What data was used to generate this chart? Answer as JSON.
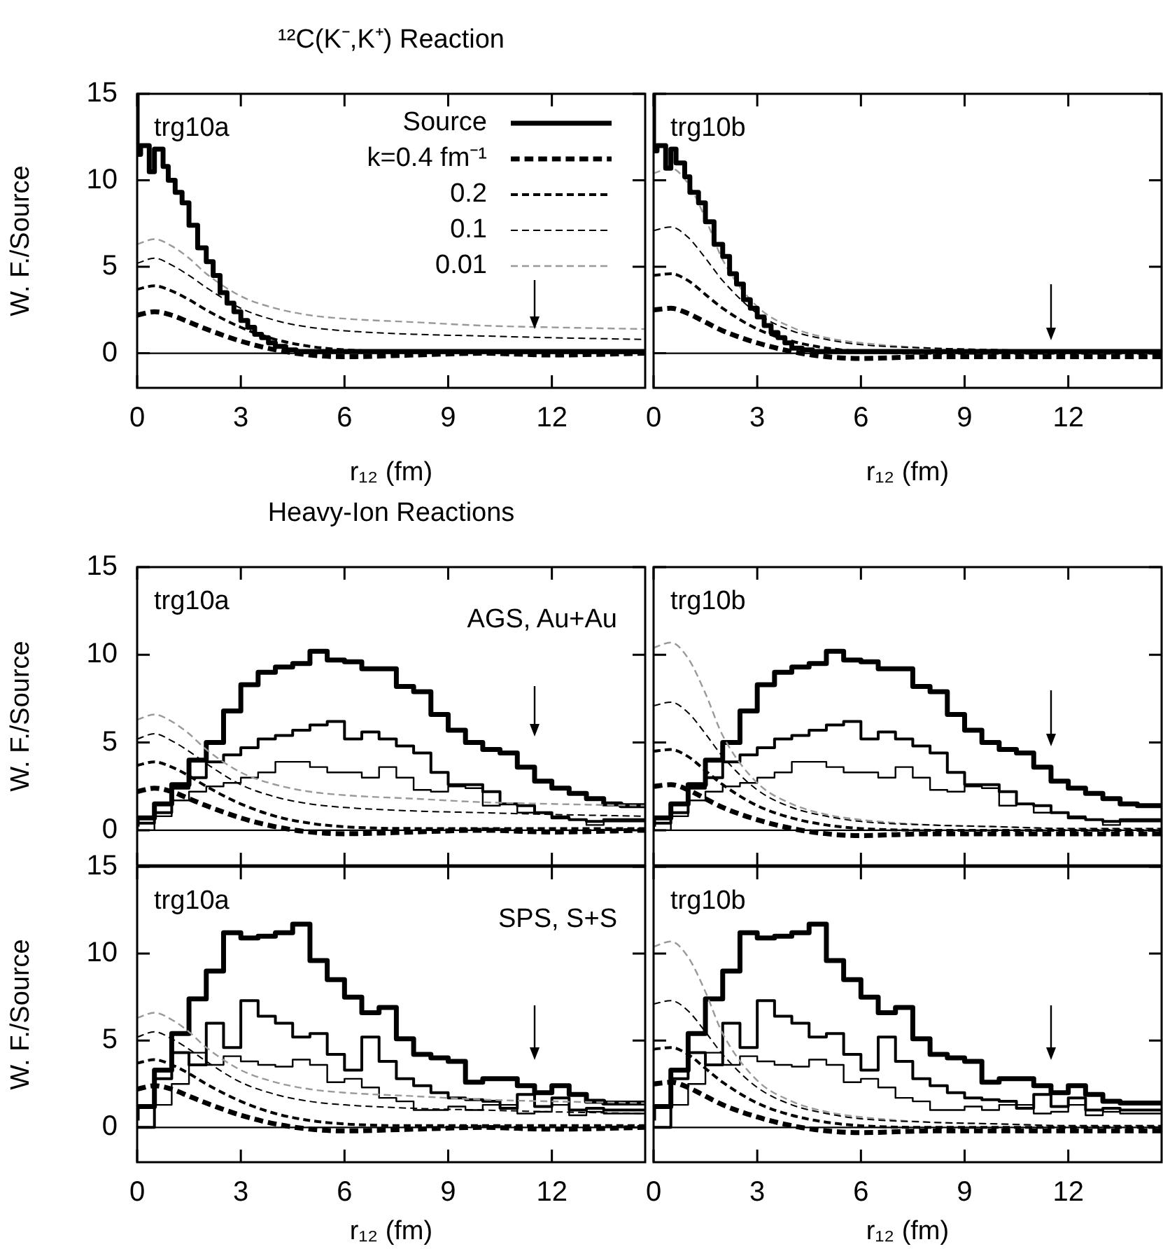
{
  "chart_data": [
    {
      "type": "line",
      "title": "¹²C(K⁻,K⁺) Reaction",
      "annotations": [
        "trg10a"
      ],
      "xlabel": "r₁₂ (fm)",
      "ylabel": "W. F./Source",
      "xlim": [
        0,
        14.7
      ],
      "ylim": [
        -2,
        15
      ],
      "xticks": [
        0,
        3,
        6,
        9,
        12
      ],
      "yticks": [
        0,
        5,
        10,
        15
      ],
      "legend": "top right",
      "ref_lines": [
        {
          "axis": "y",
          "value": 0
        }
      ],
      "series": [
        {
          "name": "Source",
          "type": "step",
          "color": "#000000",
          "x": [
            0,
            0.1,
            0.35,
            0.5,
            0.75,
            0.9,
            1.1,
            1.3,
            1.5,
            1.75,
            2.0,
            2.2,
            2.4,
            2.6,
            2.8,
            3.0,
            3.2,
            3.4,
            3.6,
            3.8,
            4.0,
            4.3,
            4.6,
            5.0,
            14.7
          ],
          "values": [
            15,
            11.5,
            12.0,
            10.5,
            11.8,
            10.8,
            10.0,
            9.3,
            8.7,
            7.4,
            6.1,
            5.3,
            4.5,
            3.5,
            2.9,
            2.4,
            1.9,
            1.5,
            1.1,
            0.9,
            0.6,
            0.4,
            0.2,
            0.1,
            0.1
          ]
        },
        {
          "name": "k=0.4 fm⁻¹",
          "type": "line",
          "line_style": "dashed",
          "color": "#000000",
          "x": [
            0,
            0.5,
            1,
            1.5,
            2,
            3,
            4,
            5,
            6,
            8,
            10,
            12,
            14.7
          ],
          "values": [
            2.2,
            2.4,
            2.2,
            1.8,
            1.4,
            0.7,
            0.2,
            -0.1,
            -0.2,
            -0.1,
            0,
            -0.1,
            0
          ]
        },
        {
          "name": "0.2",
          "type": "line",
          "line_style": "dashed",
          "color": "#000000",
          "x": [
            0,
            0.5,
            1,
            1.5,
            2,
            3,
            4,
            5,
            6,
            8,
            10,
            12,
            14.7
          ],
          "values": [
            3.7,
            3.9,
            3.6,
            3.1,
            2.5,
            1.5,
            0.8,
            0.4,
            0.2,
            0.1,
            0.1,
            0.1,
            0.1
          ]
        },
        {
          "name": "0.1",
          "type": "line",
          "line_style": "dashed",
          "color": "#000000",
          "x": [
            0,
            0.5,
            1,
            1.5,
            2,
            3,
            4,
            5,
            6,
            8,
            10,
            12,
            14.7
          ],
          "values": [
            5.2,
            5.5,
            5.1,
            4.5,
            3.8,
            2.6,
            1.9,
            1.5,
            1.3,
            1.1,
            1.0,
            0.9,
            0.8
          ]
        },
        {
          "name": "0.01",
          "type": "line",
          "line_style": "dashed",
          "color": "#999999",
          "x": [
            0,
            0.5,
            1,
            1.5,
            2,
            3,
            4,
            5,
            6,
            8,
            10,
            12,
            14.7
          ],
          "values": [
            6.3,
            6.6,
            6.2,
            5.5,
            4.6,
            3.3,
            2.6,
            2.2,
            2.0,
            1.8,
            1.6,
            1.5,
            1.4
          ]
        }
      ]
    },
    {
      "type": "line",
      "annotations": [
        "trg10b"
      ],
      "xlabel": "r₁₂ (fm)",
      "xlim": [
        0,
        14.7
      ],
      "ylim": [
        -2,
        15
      ],
      "xticks": [
        0,
        3,
        6,
        9,
        12
      ],
      "yticks": [
        0,
        5,
        10,
        15
      ],
      "tick_labels": "x",
      "ref_lines": [
        {
          "axis": "y",
          "value": 0
        }
      ],
      "series": [
        {
          "type": "step",
          "color": "#000000",
          "x": [
            0,
            0.1,
            0.35,
            0.5,
            0.65,
            0.9,
            1.05,
            1.3,
            1.5,
            1.75,
            2.0,
            2.2,
            2.4,
            2.6,
            2.8,
            3.0,
            3.2,
            3.4,
            3.6,
            3.8,
            4.0,
            4.3,
            4.6,
            5.0,
            14.7
          ],
          "values": [
            15,
            11.7,
            12.0,
            10.7,
            11.8,
            11.0,
            10.2,
            9.3,
            8.7,
            7.6,
            6.3,
            5.6,
            4.6,
            4.0,
            3.1,
            2.6,
            2.1,
            1.6,
            1.2,
            0.9,
            0.6,
            0.3,
            0.2,
            0.1,
            0.1
          ]
        },
        {
          "type": "line",
          "line_style": "dashed",
          "color": "#000000",
          "x": [
            0,
            0.5,
            1,
            1.5,
            2,
            3,
            4,
            5,
            6,
            8,
            10,
            12,
            14.7
          ],
          "values": [
            2.5,
            2.6,
            2.3,
            1.8,
            1.3,
            0.6,
            0.1,
            -0.2,
            -0.3,
            -0.2,
            -0.2,
            -0.2,
            -0.2
          ]
        },
        {
          "type": "line",
          "line_style": "dashed",
          "color": "#000000",
          "x": [
            0,
            0.5,
            1,
            1.5,
            2,
            3,
            4,
            5,
            6,
            8,
            10,
            12,
            14.7
          ],
          "values": [
            4.5,
            4.6,
            4.2,
            3.4,
            2.6,
            1.4,
            0.7,
            0.3,
            0.1,
            0,
            0,
            0,
            0
          ]
        },
        {
          "type": "line",
          "line_style": "dashed",
          "color": "#000000",
          "x": [
            0,
            0.5,
            1,
            1.5,
            2,
            3,
            4,
            5,
            6,
            8,
            10,
            12,
            14.7
          ],
          "values": [
            7.1,
            7.3,
            6.7,
            5.5,
            4.2,
            2.3,
            1.3,
            0.8,
            0.5,
            0.3,
            0.2,
            0.1,
            0.1
          ]
        },
        {
          "type": "line",
          "line_style": "dashed",
          "color": "#999999",
          "x": [
            0,
            0.5,
            1,
            1.5,
            2,
            3,
            4,
            5,
            6,
            8,
            10,
            12,
            14.7
          ],
          "values": [
            10.4,
            10.7,
            9.8,
            7.8,
            5.4,
            2.7,
            1.5,
            0.9,
            0.6,
            0.3,
            0.2,
            0.1,
            0.1
          ]
        }
      ]
    },
    {
      "type": "line",
      "title": "Heavy-Ion Reactions",
      "annotations": [
        "trg10a",
        "AGS, Au+Au"
      ],
      "ylabel": "W. F./Source",
      "xlim": [
        0,
        14.7
      ],
      "ylim": [
        -2,
        15
      ],
      "xticks": [
        0,
        3,
        6,
        9,
        12
      ],
      "yticks": [
        0,
        5,
        10,
        15
      ],
      "tick_labels": "y",
      "ref_lines": [
        {
          "axis": "y",
          "value": 0
        }
      ],
      "series": [
        {
          "type": "line",
          "line_style": "dashed",
          "color": "#000000",
          "x": [
            0,
            0.5,
            1,
            1.5,
            2,
            3,
            4,
            5,
            6,
            8,
            10,
            12,
            14.7
          ],
          "values": [
            2.2,
            2.4,
            2.2,
            1.8,
            1.4,
            0.7,
            0.2,
            -0.1,
            -0.2,
            -0.1,
            0,
            -0.1,
            0
          ]
        },
        {
          "type": "line",
          "line_style": "dashed",
          "color": "#000000",
          "x": [
            0,
            0.5,
            1,
            1.5,
            2,
            3,
            4,
            5,
            6,
            8,
            10,
            12,
            14.7
          ],
          "values": [
            3.7,
            3.9,
            3.6,
            3.1,
            2.5,
            1.5,
            0.8,
            0.4,
            0.2,
            0.1,
            0.1,
            0.1,
            0.1
          ]
        },
        {
          "type": "line",
          "line_style": "dashed",
          "color": "#000000",
          "x": [
            0,
            0.5,
            1,
            1.5,
            2,
            3,
            4,
            5,
            6,
            8,
            10,
            12,
            14.7
          ],
          "values": [
            5.2,
            5.5,
            5.1,
            4.5,
            3.8,
            2.6,
            1.9,
            1.5,
            1.3,
            1.1,
            1.0,
            0.9,
            0.8
          ]
        },
        {
          "type": "line",
          "line_style": "dashed",
          "color": "#999999",
          "x": [
            0,
            0.5,
            1,
            1.5,
            2,
            3,
            4,
            5,
            6,
            8,
            10,
            12,
            14.7
          ],
          "values": [
            6.3,
            6.6,
            6.2,
            5.5,
            4.6,
            3.3,
            2.6,
            2.2,
            2.0,
            1.8,
            1.6,
            1.5,
            1.4
          ]
        },
        {
          "type": "step",
          "color": "#000000",
          "x": [
            0,
            0.5,
            1,
            1.5,
            2,
            2.5,
            3,
            3.5,
            4,
            4.5,
            5,
            5.5,
            6,
            6.5,
            7,
            7.5,
            8,
            8.5,
            9,
            9.5,
            10,
            10.5,
            11,
            11.5,
            12,
            12.5,
            13,
            13.5,
            14,
            14.5,
            14.7
          ],
          "values": [
            0.2,
            0.7,
            1.5,
            2.6,
            4.0,
            5.0,
            6.8,
            8.3,
            9.0,
            9.3,
            9.5,
            10.2,
            9.7,
            9.6,
            9.2,
            9.2,
            8.2,
            7.9,
            6.6,
            5.7,
            5.0,
            4.6,
            4.4,
            3.6,
            2.8,
            2.4,
            2.1,
            1.8,
            1.5,
            1.4,
            1.4
          ]
        },
        {
          "type": "step",
          "color": "#000000",
          "x": [
            0,
            0.5,
            1,
            1.5,
            2,
            2.5,
            3,
            3.5,
            4,
            4.5,
            5,
            5.5,
            6,
            6.5,
            7,
            7.5,
            8,
            8.5,
            9,
            9.5,
            10,
            10.5,
            11,
            11.5,
            12,
            12.5,
            13,
            13.5,
            14,
            14.5,
            14.7
          ],
          "values": [
            0,
            0.4,
            1.0,
            2.4,
            3.0,
            3.9,
            4.3,
            4.7,
            5.2,
            5.4,
            5.7,
            6.0,
            6.2,
            5.2,
            5.6,
            5.2,
            4.8,
            4.4,
            3.3,
            2.6,
            2.6,
            2.2,
            1.5,
            1.4,
            1.0,
            0.7,
            0.6,
            0.5,
            0.6,
            0.6,
            0.6
          ]
        },
        {
          "type": "step",
          "color": "#000000",
          "x": [
            0,
            0.5,
            1,
            1.5,
            2,
            2.5,
            3,
            3.5,
            4,
            4.5,
            5,
            5.5,
            6,
            6.5,
            7,
            7.5,
            8,
            8.5,
            9,
            9.5,
            10,
            10.5,
            11,
            11.5,
            12,
            12.5,
            13,
            13.5,
            14,
            14.5,
            14.7
          ],
          "values": [
            0,
            0,
            0.8,
            1.7,
            2.2,
            2.5,
            2.7,
            3.0,
            3.3,
            3.9,
            3.9,
            3.6,
            3.3,
            3.3,
            3.0,
            3.6,
            3.0,
            2.3,
            2.2,
            2.5,
            2.4,
            1.4,
            1.5,
            1.0,
            1.0,
            0.8,
            0.6,
            0.3,
            0.5,
            0.5,
            0.5
          ]
        }
      ]
    },
    {
      "type": "line",
      "annotations": [
        "trg10b"
      ],
      "xlim": [
        0,
        14.7
      ],
      "ylim": [
        -2,
        15
      ],
      "xticks": [
        0,
        3,
        6,
        9,
        12
      ],
      "yticks": [
        0,
        5,
        10,
        15
      ],
      "tick_labels": false,
      "ref_lines": [
        {
          "axis": "y",
          "value": 0
        }
      ],
      "series": [
        {
          "type": "line",
          "line_style": "dashed",
          "color": "#000000",
          "x": [
            0,
            0.5,
            1,
            1.5,
            2,
            3,
            4,
            5,
            6,
            8,
            10,
            12,
            14.7
          ],
          "values": [
            2.5,
            2.6,
            2.3,
            1.8,
            1.3,
            0.6,
            0.1,
            -0.2,
            -0.3,
            -0.2,
            -0.2,
            -0.2,
            -0.2
          ]
        },
        {
          "type": "line",
          "line_style": "dashed",
          "color": "#000000",
          "x": [
            0,
            0.5,
            1,
            1.5,
            2,
            3,
            4,
            5,
            6,
            8,
            10,
            12,
            14.7
          ],
          "values": [
            4.5,
            4.6,
            4.2,
            3.4,
            2.6,
            1.4,
            0.7,
            0.3,
            0.1,
            0,
            0,
            0,
            0
          ]
        },
        {
          "type": "line",
          "line_style": "dashed",
          "color": "#000000",
          "x": [
            0,
            0.5,
            1,
            1.5,
            2,
            3,
            4,
            5,
            6,
            8,
            10,
            12,
            14.7
          ],
          "values": [
            7.1,
            7.3,
            6.7,
            5.5,
            4.2,
            2.3,
            1.3,
            0.8,
            0.5,
            0.3,
            0.2,
            0.1,
            0.1
          ]
        },
        {
          "type": "line",
          "line_style": "dashed",
          "color": "#999999",
          "x": [
            0,
            0.5,
            1,
            1.5,
            2,
            3,
            4,
            5,
            6,
            8,
            10,
            12,
            14.7
          ],
          "values": [
            10.4,
            10.7,
            9.8,
            7.8,
            5.4,
            2.7,
            1.5,
            0.9,
            0.6,
            0.3,
            0.2,
            0.1,
            0.1
          ]
        },
        {
          "type": "step",
          "color": "#000000",
          "x": [
            0,
            0.5,
            1,
            1.5,
            2,
            2.5,
            3,
            3.5,
            4,
            4.5,
            5,
            5.5,
            6,
            6.5,
            7,
            7.5,
            8,
            8.5,
            9,
            9.5,
            10,
            10.5,
            11,
            11.5,
            12,
            12.5,
            13,
            13.5,
            14,
            14.5,
            14.7
          ],
          "values": [
            0.2,
            0.7,
            1.5,
            2.6,
            4.0,
            5.0,
            6.8,
            8.3,
            9.0,
            9.3,
            9.5,
            10.2,
            9.7,
            9.6,
            9.2,
            9.2,
            8.2,
            7.9,
            6.6,
            5.7,
            5.0,
            4.6,
            4.4,
            3.6,
            2.8,
            2.4,
            2.1,
            1.8,
            1.5,
            1.4,
            1.4
          ]
        },
        {
          "type": "step",
          "color": "#000000",
          "x": [
            0,
            0.5,
            1,
            1.5,
            2,
            2.5,
            3,
            3.5,
            4,
            4.5,
            5,
            5.5,
            6,
            6.5,
            7,
            7.5,
            8,
            8.5,
            9,
            9.5,
            10,
            10.5,
            11,
            11.5,
            12,
            12.5,
            13,
            13.5,
            14,
            14.5,
            14.7
          ],
          "values": [
            0,
            0.4,
            1.0,
            2.4,
            3.0,
            3.9,
            4.3,
            4.7,
            5.2,
            5.4,
            5.7,
            6.0,
            6.2,
            5.2,
            5.6,
            5.2,
            4.8,
            4.4,
            3.3,
            2.6,
            2.6,
            2.2,
            1.5,
            1.4,
            1.0,
            0.7,
            0.6,
            0.5,
            0.6,
            0.6,
            0.6
          ]
        },
        {
          "type": "step",
          "color": "#000000",
          "x": [
            0,
            0.5,
            1,
            1.5,
            2,
            2.5,
            3,
            3.5,
            4,
            4.5,
            5,
            5.5,
            6,
            6.5,
            7,
            7.5,
            8,
            8.5,
            9,
            9.5,
            10,
            10.5,
            11,
            11.5,
            12,
            12.5,
            13,
            13.5,
            14,
            14.5,
            14.7
          ],
          "values": [
            0,
            0,
            0.8,
            1.7,
            2.2,
            2.5,
            2.7,
            3.0,
            3.3,
            3.9,
            3.9,
            3.6,
            3.3,
            3.3,
            3.0,
            3.6,
            3.0,
            2.3,
            2.2,
            2.5,
            2.4,
            1.4,
            1.5,
            1.0,
            1.0,
            0.8,
            0.6,
            0.3,
            0.5,
            0.5,
            0.5
          ]
        }
      ]
    },
    {
      "type": "line",
      "annotations": [
        "trg10a",
        "SPS, S+S"
      ],
      "xlabel": "r₁₂ (fm)",
      "ylabel": "W. F./Source",
      "xlim": [
        0,
        14.7
      ],
      "ylim": [
        -2,
        15
      ],
      "xticks": [
        0,
        3,
        6,
        9,
        12
      ],
      "yticks": [
        0,
        5,
        10,
        15
      ],
      "ref_lines": [
        {
          "axis": "y",
          "value": 0
        }
      ],
      "series": [
        {
          "type": "line",
          "line_style": "dashed",
          "color": "#000000",
          "x": [
            0,
            0.5,
            1,
            1.5,
            2,
            3,
            4,
            5,
            6,
            8,
            10,
            12,
            14.7
          ],
          "values": [
            2.2,
            2.4,
            2.2,
            1.8,
            1.4,
            0.7,
            0.2,
            -0.1,
            -0.2,
            -0.1,
            0,
            -0.1,
            0
          ]
        },
        {
          "type": "line",
          "line_style": "dashed",
          "color": "#000000",
          "x": [
            0,
            0.5,
            1,
            1.5,
            2,
            3,
            4,
            5,
            6,
            8,
            10,
            12,
            14.7
          ],
          "values": [
            3.7,
            3.9,
            3.6,
            3.1,
            2.5,
            1.5,
            0.8,
            0.4,
            0.2,
            0.1,
            0.1,
            0.1,
            0.1
          ]
        },
        {
          "type": "line",
          "line_style": "dashed",
          "color": "#000000",
          "x": [
            0,
            0.5,
            1,
            1.5,
            2,
            3,
            4,
            5,
            6,
            8,
            10,
            12,
            14.7
          ],
          "values": [
            5.2,
            5.5,
            5.1,
            4.5,
            3.8,
            2.6,
            1.9,
            1.5,
            1.3,
            1.1,
            1.0,
            0.9,
            0.8
          ]
        },
        {
          "type": "line",
          "line_style": "dashed",
          "color": "#999999",
          "x": [
            0,
            0.5,
            1,
            1.5,
            2,
            3,
            4,
            5,
            6,
            8,
            10,
            12,
            14.7
          ],
          "values": [
            6.3,
            6.6,
            6.2,
            5.5,
            4.6,
            3.3,
            2.6,
            2.2,
            2.0,
            1.8,
            1.6,
            1.5,
            1.4
          ]
        },
        {
          "type": "step",
          "color": "#000000",
          "x": [
            0,
            0.5,
            1,
            1.5,
            2,
            2.5,
            3,
            3.5,
            4,
            4.5,
            5,
            5.5,
            6,
            6.5,
            7,
            7.5,
            8,
            8.5,
            9,
            9.5,
            10,
            10.5,
            11,
            11.5,
            12,
            12.5,
            13,
            13.5,
            14,
            14.5,
            14.7
          ],
          "values": [
            0.4,
            1.2,
            3.3,
            5.4,
            7.4,
            9.0,
            11.2,
            10.9,
            11.0,
            11.2,
            11.7,
            9.6,
            8.5,
            7.5,
            6.6,
            6.9,
            5.1,
            4.2,
            4.0,
            3.8,
            2.6,
            2.8,
            2.8,
            2.4,
            2.0,
            2.4,
            1.9,
            1.5,
            1.4,
            1.4,
            1.4
          ]
        },
        {
          "type": "step",
          "color": "#000000",
          "x": [
            0,
            0.5,
            1,
            1.5,
            2,
            2.5,
            3,
            3.5,
            4,
            4.5,
            5,
            5.5,
            6,
            6.5,
            7,
            7.5,
            8,
            8.5,
            9,
            9.5,
            10,
            10.5,
            11,
            11.5,
            12,
            12.5,
            13,
            13.5,
            14,
            14.5,
            14.7
          ],
          "values": [
            0,
            0,
            2.8,
            4.3,
            3.6,
            6.0,
            4.6,
            7.3,
            6.4,
            6.0,
            5.2,
            5.4,
            4.2,
            3.3,
            5.2,
            3.8,
            2.8,
            2.4,
            2.0,
            1.7,
            1.6,
            1.5,
            1.1,
            1.9,
            1.2,
            1.7,
            1.0,
            1.1,
            1.0,
            1.0,
            1.0
          ]
        },
        {
          "type": "step",
          "color": "#000000",
          "x": [
            0,
            0.5,
            1,
            1.5,
            2,
            2.5,
            3,
            3.5,
            4,
            4.5,
            5,
            5.5,
            6,
            6.5,
            7,
            7.5,
            8,
            8.5,
            9,
            9.5,
            10,
            10.5,
            11,
            11.5,
            12,
            12.5,
            13,
            13.5,
            14,
            14.5,
            14.7
          ],
          "values": [
            0,
            0,
            1.3,
            2.5,
            4.3,
            3.6,
            4.1,
            3.8,
            3.6,
            3.5,
            3.9,
            3.6,
            2.6,
            2.8,
            2.3,
            1.7,
            1.5,
            1.0,
            1.0,
            1.2,
            1.0,
            1.3,
            1.3,
            0.8,
            0.9,
            1.3,
            0.7,
            0.9,
            0.8,
            0.8,
            0.8
          ]
        }
      ]
    },
    {
      "type": "line",
      "annotations": [
        "trg10b"
      ],
      "xlabel": "r₁₂ (fm)",
      "xlim": [
        0,
        14.7
      ],
      "ylim": [
        -2,
        15
      ],
      "xticks": [
        0,
        3,
        6,
        9,
        12
      ],
      "yticks": [
        0,
        5,
        10,
        15
      ],
      "tick_labels": "x",
      "ref_lines": [
        {
          "axis": "y",
          "value": 0
        }
      ],
      "series": [
        {
          "type": "line",
          "line_style": "dashed",
          "color": "#000000",
          "x": [
            0,
            0.5,
            1,
            1.5,
            2,
            3,
            4,
            5,
            6,
            8,
            10,
            12,
            14.7
          ],
          "values": [
            2.5,
            2.6,
            2.3,
            1.8,
            1.3,
            0.6,
            0.1,
            -0.2,
            -0.3,
            -0.2,
            -0.2,
            -0.2,
            -0.2
          ]
        },
        {
          "type": "line",
          "line_style": "dashed",
          "color": "#000000",
          "x": [
            0,
            0.5,
            1,
            1.5,
            2,
            3,
            4,
            5,
            6,
            8,
            10,
            12,
            14.7
          ],
          "values": [
            4.5,
            4.6,
            4.2,
            3.4,
            2.6,
            1.4,
            0.7,
            0.3,
            0.1,
            0,
            0,
            0,
            0
          ]
        },
        {
          "type": "line",
          "line_style": "dashed",
          "color": "#000000",
          "x": [
            0,
            0.5,
            1,
            1.5,
            2,
            3,
            4,
            5,
            6,
            8,
            10,
            12,
            14.7
          ],
          "values": [
            7.1,
            7.3,
            6.7,
            5.5,
            4.2,
            2.3,
            1.3,
            0.8,
            0.5,
            0.3,
            0.2,
            0.1,
            0.1
          ]
        },
        {
          "type": "line",
          "line_style": "dashed",
          "color": "#999999",
          "x": [
            0,
            0.5,
            1,
            1.5,
            2,
            3,
            4,
            5,
            6,
            8,
            10,
            12,
            14.7
          ],
          "values": [
            10.4,
            10.7,
            9.8,
            7.8,
            5.4,
            2.7,
            1.5,
            0.9,
            0.6,
            0.3,
            0.2,
            0.1,
            0.1
          ]
        },
        {
          "type": "step",
          "color": "#000000",
          "x": [
            0,
            0.5,
            1,
            1.5,
            2,
            2.5,
            3,
            3.5,
            4,
            4.5,
            5,
            5.5,
            6,
            6.5,
            7,
            7.5,
            8,
            8.5,
            9,
            9.5,
            10,
            10.5,
            11,
            11.5,
            12,
            12.5,
            13,
            13.5,
            14,
            14.5,
            14.7
          ],
          "values": [
            0.4,
            1.2,
            3.3,
            5.4,
            7.4,
            9.0,
            11.2,
            10.9,
            11.0,
            11.2,
            11.7,
            9.6,
            8.5,
            7.5,
            6.6,
            6.9,
            5.1,
            4.2,
            4.0,
            3.8,
            2.6,
            2.8,
            2.8,
            2.4,
            2.0,
            2.4,
            1.9,
            1.5,
            1.4,
            1.4,
            1.4
          ]
        },
        {
          "type": "step",
          "color": "#000000",
          "x": [
            0,
            0.5,
            1,
            1.5,
            2,
            2.5,
            3,
            3.5,
            4,
            4.5,
            5,
            5.5,
            6,
            6.5,
            7,
            7.5,
            8,
            8.5,
            9,
            9.5,
            10,
            10.5,
            11,
            11.5,
            12,
            12.5,
            13,
            13.5,
            14,
            14.5,
            14.7
          ],
          "values": [
            0,
            0,
            2.8,
            4.3,
            3.6,
            6.0,
            4.6,
            7.3,
            6.4,
            6.0,
            5.2,
            5.4,
            4.2,
            3.3,
            5.2,
            3.8,
            2.8,
            2.4,
            2.0,
            1.7,
            1.6,
            1.5,
            1.1,
            1.9,
            1.2,
            1.7,
            1.0,
            1.1,
            1.0,
            1.0,
            1.0
          ]
        },
        {
          "type": "step",
          "color": "#000000",
          "x": [
            0,
            0.5,
            1,
            1.5,
            2,
            2.5,
            3,
            3.5,
            4,
            4.5,
            5,
            5.5,
            6,
            6.5,
            7,
            7.5,
            8,
            8.5,
            9,
            9.5,
            10,
            10.5,
            11,
            11.5,
            12,
            12.5,
            13,
            13.5,
            14,
            14.5,
            14.7
          ],
          "values": [
            0,
            0,
            1.3,
            2.5,
            4.3,
            3.6,
            4.1,
            3.8,
            3.6,
            3.5,
            3.9,
            3.6,
            2.6,
            2.8,
            2.3,
            1.7,
            1.5,
            1.0,
            1.0,
            1.2,
            1.0,
            1.3,
            1.3,
            0.8,
            0.9,
            1.3,
            0.7,
            0.9,
            0.8,
            0.8,
            0.8
          ]
        }
      ]
    }
  ]
}
